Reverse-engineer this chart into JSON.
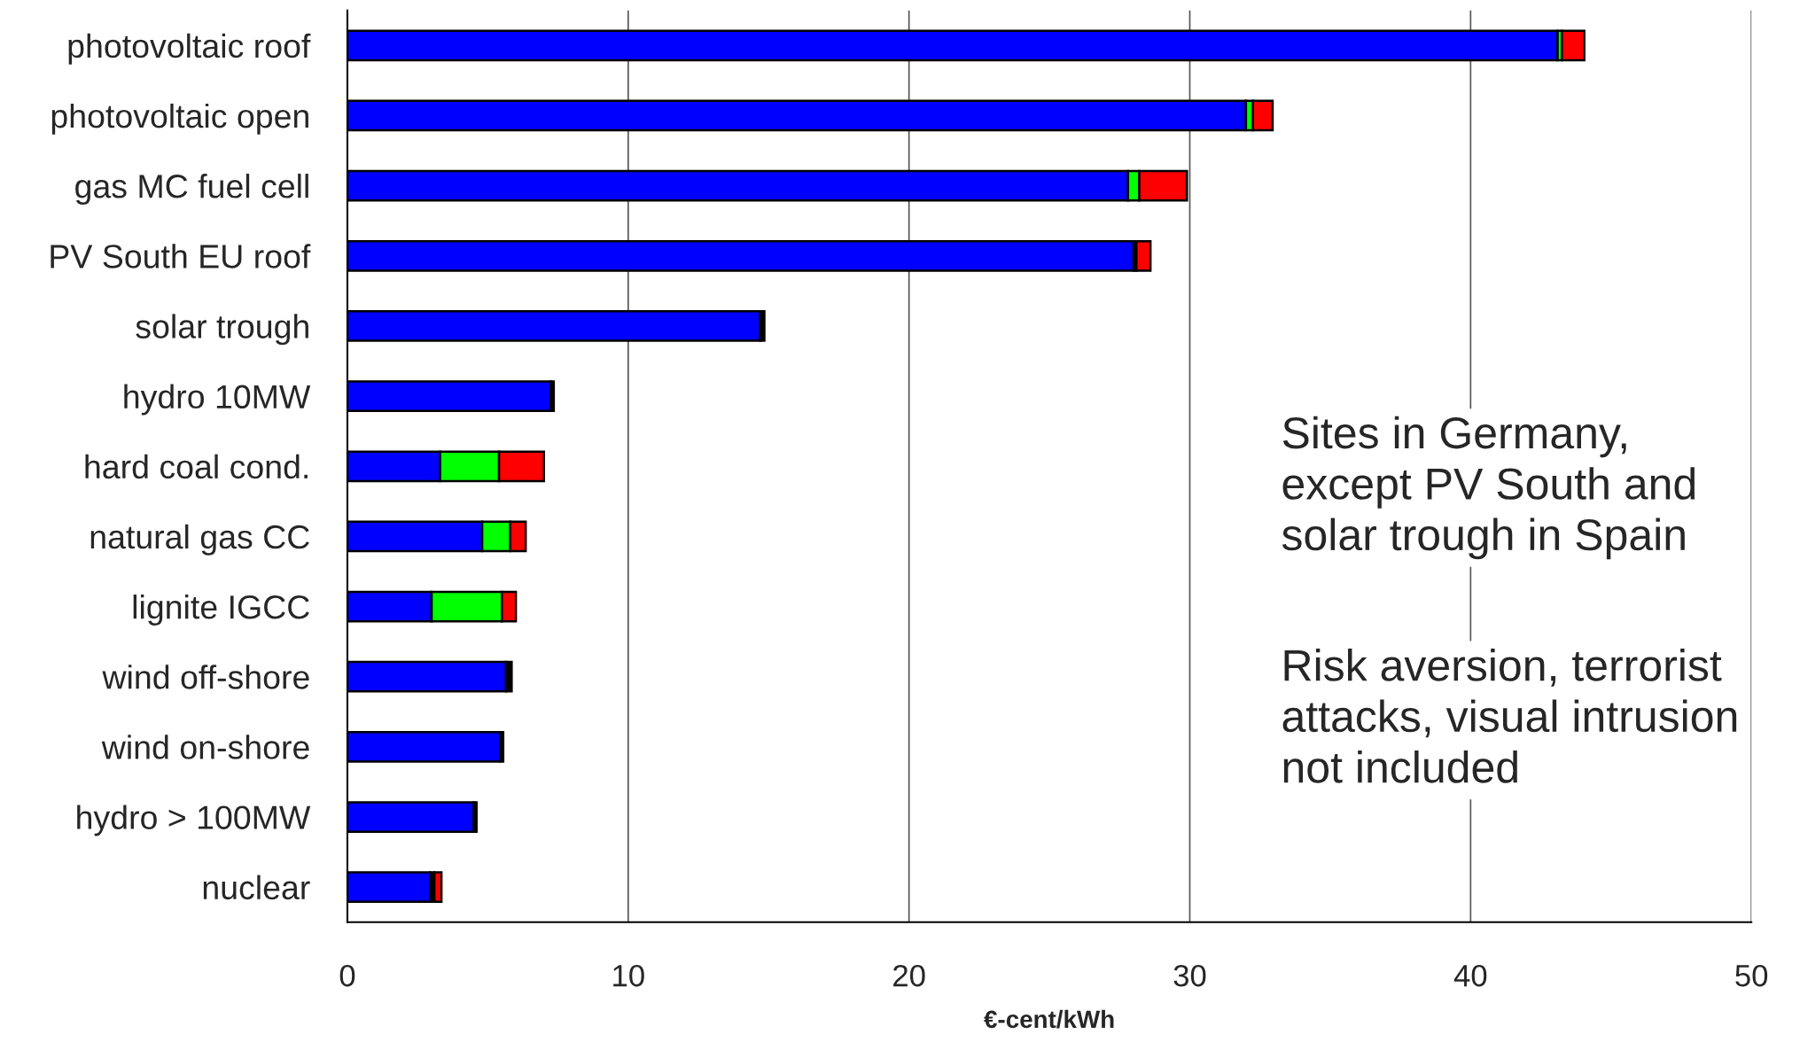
{
  "chart_data": {
    "type": "bar",
    "orientation": "horizontal",
    "stacked": true,
    "xlabel": "€-cent/kWh",
    "categories": [
      "photovoltaic roof",
      "photovoltaic open",
      "gas MC fuel cell",
      "PV South EU roof",
      "solar trough",
      "hydro 10MW",
      "hard coal cond.",
      "natural gas CC",
      "lignite IGCC",
      "wind off-shore",
      "wind on-shore",
      "hydro > 100MW",
      "nuclear"
    ],
    "series": [
      {
        "color": "#0000ff",
        "values": [
          43.1,
          32.0,
          27.8,
          28.0,
          14.7,
          7.25,
          3.3,
          4.8,
          3.0,
          5.65,
          5.45,
          4.5,
          2.95
        ]
      },
      {
        "color": "#000000",
        "values": [
          null,
          null,
          null,
          0.1,
          0.15,
          0.1,
          null,
          null,
          null,
          0.2,
          0.1,
          0.1,
          0.15
        ]
      },
      {
        "color": "#00ff00",
        "values": [
          0.15,
          0.25,
          0.4,
          null,
          null,
          null,
          2.1,
          1.0,
          2.5,
          null,
          null,
          null,
          null
        ]
      },
      {
        "color": "#ff0000",
        "values": [
          0.8,
          0.7,
          1.7,
          0.5,
          null,
          null,
          1.6,
          0.55,
          0.5,
          null,
          null,
          null,
          0.25
        ]
      }
    ],
    "xlim": [
      0,
      50
    ],
    "xticks": [
      0,
      10,
      20,
      30,
      40,
      50
    ],
    "grid": "x",
    "legend": false,
    "annotations": [
      "Sites in Germany, except PV South and solar trough in Spain",
      "Risk aversion, terrorist attacks, visual intrusion not included"
    ]
  }
}
